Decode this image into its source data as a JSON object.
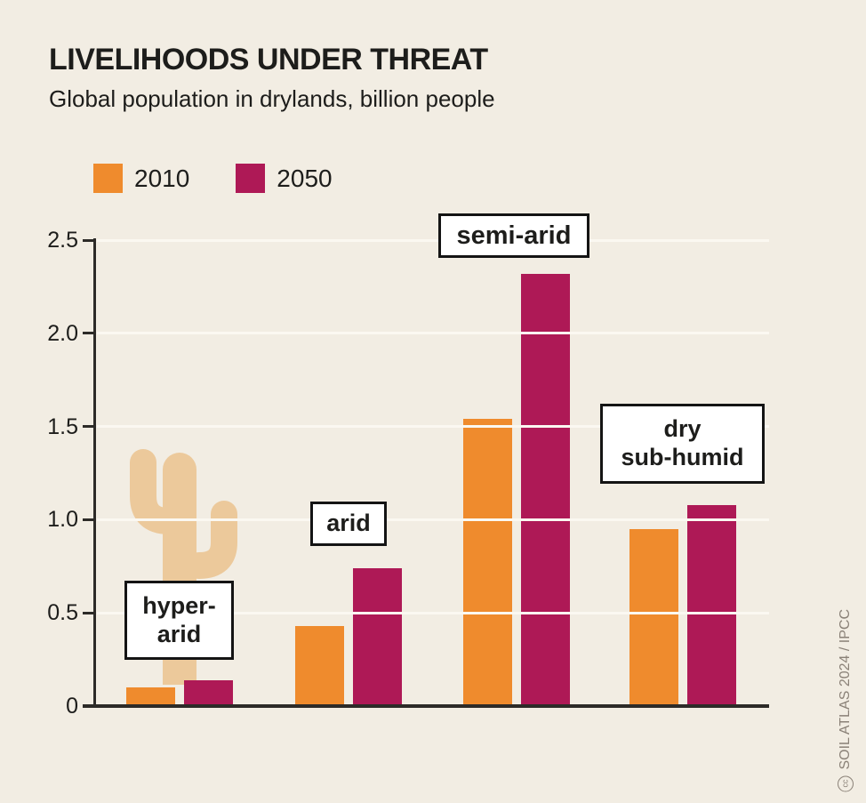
{
  "header": {
    "title": "LIVELIHOODS UNDER THREAT",
    "subtitle": "Global population in drylands, billion people"
  },
  "legend": {
    "items": [
      {
        "label": "2010",
        "color": "#ef8b2d"
      },
      {
        "label": "2050",
        "color": "#ae1956"
      }
    ]
  },
  "chart_data": {
    "type": "bar",
    "title": "LIVELIHOODS UNDER THREAT",
    "subtitle": "Global population in drylands, billion people",
    "unit": "billion people",
    "categories": [
      "hyper-arid",
      "arid",
      "semi-arid",
      "dry sub-humid"
    ],
    "series": [
      {
        "name": "2010",
        "color": "#ef8b2d",
        "values": [
          0.1,
          0.43,
          1.54,
          0.95
        ]
      },
      {
        "name": "2050",
        "color": "#ae1956",
        "values": [
          0.14,
          0.74,
          2.32,
          1.08
        ]
      }
    ],
    "ylim": [
      0,
      2.5
    ],
    "yticks": [
      0,
      0.5,
      1.0,
      1.5,
      2.0,
      2.5
    ],
    "ytick_labels": [
      "0",
      "0.5",
      "1.0",
      "1.5",
      "2.0",
      "2.5"
    ],
    "grid": true,
    "legend_position": "top-left"
  },
  "category_labels": {
    "hyper_arid": "hyper-\narid",
    "arid": "arid",
    "semi_arid": "semi-arid",
    "dry_sub_humid": "dry\nsub-humid"
  },
  "attribution": {
    "cc_symbol": "cc",
    "text": "SOIL ATLAS 2024 / IPCC"
  },
  "colors": {
    "background": "#f2ede3",
    "bar_2010": "#ef8b2d",
    "bar_2050": "#ae1956",
    "cactus": "#ecc99b",
    "axis": "#2d2b28",
    "gridline": "#fbf8f1",
    "label_box_border": "#141414",
    "attribution_text": "#8a8177"
  }
}
